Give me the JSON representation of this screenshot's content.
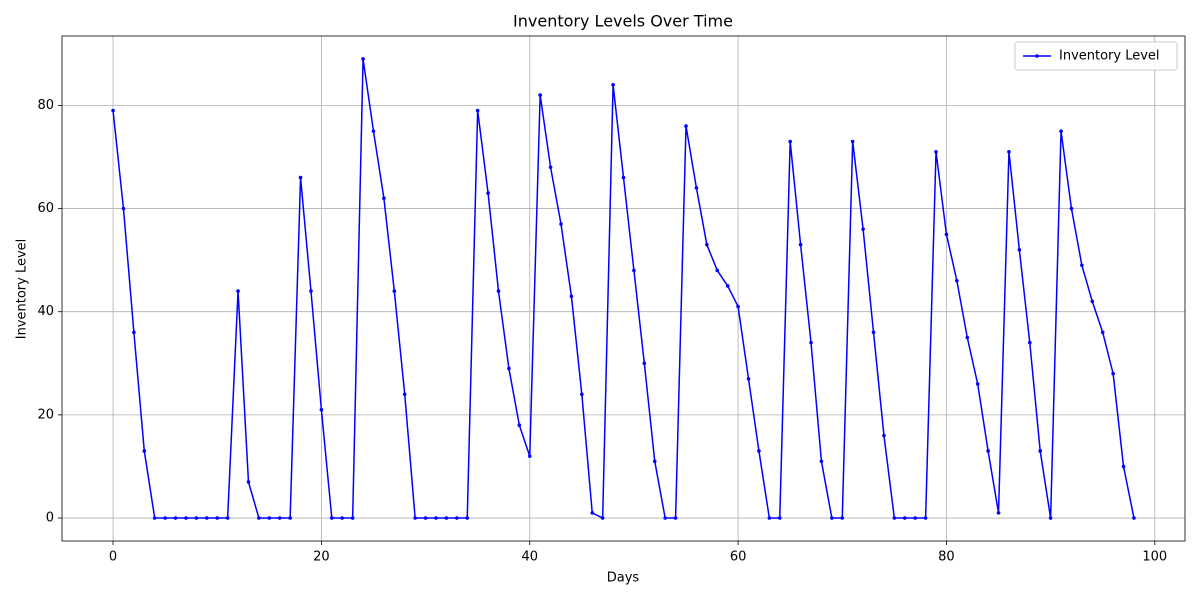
{
  "chart_data": {
    "type": "line",
    "title": "Inventory Levels Over Time",
    "xlabel": "Days",
    "ylabel": "Inventory Level",
    "x": [
      0,
      1,
      2,
      3,
      4,
      5,
      6,
      7,
      8,
      9,
      10,
      11,
      12,
      13,
      14,
      15,
      16,
      17,
      18,
      19,
      20,
      21,
      22,
      23,
      24,
      25,
      26,
      27,
      28,
      29,
      30,
      31,
      32,
      33,
      34,
      35,
      36,
      37,
      38,
      39,
      40,
      41,
      42,
      43,
      44,
      45,
      46,
      47,
      48,
      49,
      50,
      51,
      52,
      53,
      54,
      55,
      56,
      57,
      58,
      59,
      60,
      61,
      62,
      63,
      64,
      65,
      66,
      67,
      68,
      69,
      70,
      71,
      72,
      73,
      74,
      75,
      76,
      77,
      78,
      79,
      80,
      81,
      82,
      83,
      84,
      85,
      86,
      87,
      88,
      89,
      90,
      91,
      92,
      93,
      94,
      95,
      96,
      97,
      98
    ],
    "series": [
      {
        "name": "Inventory Level",
        "color": "#0000ff",
        "values": [
          79,
          60,
          36,
          13,
          0,
          0,
          0,
          0,
          0,
          0,
          0,
          0,
          44,
          7,
          0,
          0,
          0,
          0,
          66,
          44,
          21,
          0,
          0,
          0,
          89,
          75,
          62,
          44,
          24,
          0,
          0,
          0,
          0,
          0,
          0,
          79,
          63,
          44,
          29,
          18,
          12,
          82,
          68,
          57,
          43,
          24,
          1,
          0,
          84,
          66,
          48,
          30,
          11,
          0,
          0,
          76,
          64,
          53,
          48,
          45,
          41,
          27,
          13,
          0,
          0,
          73,
          53,
          34,
          11,
          0,
          0,
          73,
          56,
          36,
          16,
          0,
          0,
          0,
          0,
          71,
          55,
          46,
          35,
          26,
          13,
          1,
          71,
          52,
          34,
          13,
          0,
          75,
          60,
          49,
          42,
          36,
          28,
          10,
          0
        ]
      }
    ],
    "xlim": [
      -4.9,
      102.9
    ],
    "ylim": [
      -4.45,
      93.45
    ],
    "xticks": [
      0,
      20,
      40,
      60,
      80,
      100
    ],
    "yticks": [
      0,
      20,
      40,
      60,
      80
    ],
    "grid": true,
    "legend": "upper right"
  }
}
